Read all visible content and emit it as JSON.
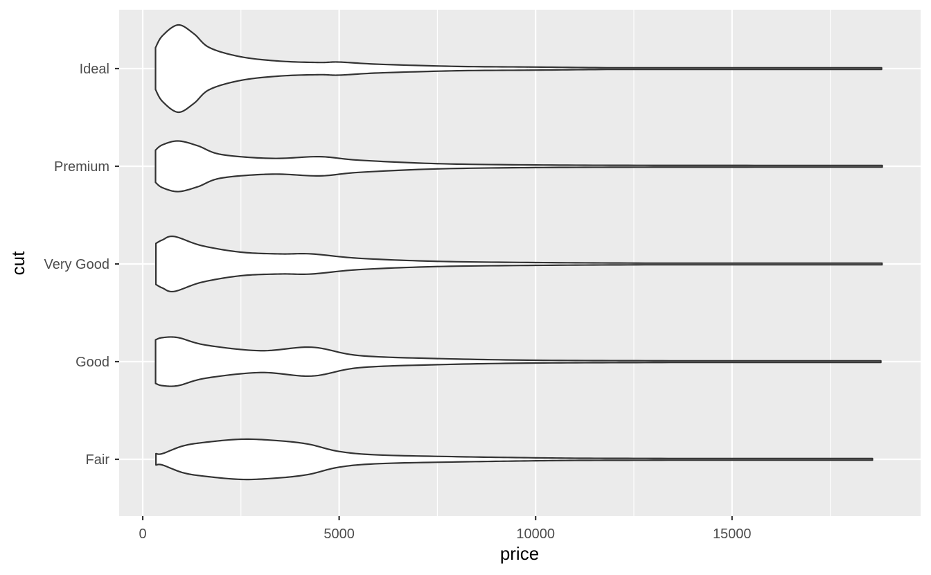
{
  "chart_data": {
    "type": "violin",
    "orientation": "horizontal",
    "title": "",
    "xlabel": "price",
    "ylabel": "cut",
    "xlim": [
      -600,
      19800
    ],
    "x_ticks": [
      0,
      5000,
      10000,
      15000
    ],
    "x_tick_labels": [
      "0",
      "5000",
      "10000",
      "15000"
    ],
    "x_minor_ticks": [
      2500,
      7500,
      12500,
      17500
    ],
    "categories": [
      "Ideal",
      "Premium",
      "Very Good",
      "Good",
      "Fair"
    ],
    "grid": true,
    "legend": "none",
    "colors": {
      "panel_background": "#ebebeb",
      "grid_line": "#ffffff",
      "violin_fill": "#ffffff",
      "violin_outline": "#333333",
      "tick_label": "#4d4d4d",
      "axis_title": "#000000"
    },
    "series": [
      {
        "category": "Ideal",
        "min": 326,
        "max": 18806,
        "density_profile": [
          [
            326,
            0.48
          ],
          [
            500,
            0.75
          ],
          [
            900,
            1.0
          ],
          [
            1300,
            0.8
          ],
          [
            1700,
            0.48
          ],
          [
            2500,
            0.27
          ],
          [
            3500,
            0.17
          ],
          [
            4500,
            0.14
          ],
          [
            5000,
            0.15
          ],
          [
            6000,
            0.1
          ],
          [
            8000,
            0.05
          ],
          [
            10000,
            0.035
          ],
          [
            12000,
            0.018
          ],
          [
            15000,
            0.008
          ],
          [
            18806,
            0.0
          ]
        ]
      },
      {
        "category": "Premium",
        "min": 326,
        "max": 18823,
        "density_profile": [
          [
            326,
            0.37
          ],
          [
            500,
            0.49
          ],
          [
            900,
            0.58
          ],
          [
            1400,
            0.47
          ],
          [
            2000,
            0.27
          ],
          [
            3300,
            0.18
          ],
          [
            4500,
            0.22
          ],
          [
            5500,
            0.14
          ],
          [
            7500,
            0.06
          ],
          [
            10000,
            0.03
          ],
          [
            13000,
            0.02
          ],
          [
            16000,
            0.018
          ],
          [
            18823,
            0.0
          ]
        ]
      },
      {
        "category": "Very Good",
        "min": 336,
        "max": 18818,
        "density_profile": [
          [
            336,
            0.47
          ],
          [
            500,
            0.55
          ],
          [
            800,
            0.63
          ],
          [
            1500,
            0.42
          ],
          [
            2500,
            0.27
          ],
          [
            3500,
            0.23
          ],
          [
            4300,
            0.23
          ],
          [
            5500,
            0.13
          ],
          [
            7500,
            0.06
          ],
          [
            10000,
            0.032
          ],
          [
            13000,
            0.018
          ],
          [
            16000,
            0.008
          ],
          [
            18818,
            0.0
          ]
        ]
      },
      {
        "category": "Good",
        "min": 327,
        "max": 18788,
        "density_profile": [
          [
            327,
            0.5
          ],
          [
            500,
            0.55
          ],
          [
            900,
            0.55
          ],
          [
            1600,
            0.38
          ],
          [
            3000,
            0.25
          ],
          [
            4300,
            0.33
          ],
          [
            5500,
            0.14
          ],
          [
            7500,
            0.07
          ],
          [
            10000,
            0.032
          ],
          [
            13000,
            0.02
          ],
          [
            16000,
            0.012
          ],
          [
            18788,
            0.0
          ]
        ]
      },
      {
        "category": "Fair",
        "min": 337,
        "max": 18574,
        "density_profile": [
          [
            337,
            0.13
          ],
          [
            500,
            0.13
          ],
          [
            1000,
            0.3
          ],
          [
            1500,
            0.38
          ],
          [
            2500,
            0.46
          ],
          [
            3400,
            0.43
          ],
          [
            4200,
            0.35
          ],
          [
            5000,
            0.18
          ],
          [
            6000,
            0.1
          ],
          [
            8000,
            0.06
          ],
          [
            9500,
            0.04
          ],
          [
            11000,
            0.025
          ],
          [
            13000,
            0.02
          ],
          [
            16000,
            0.012
          ],
          [
            18574,
            0.0
          ]
        ]
      }
    ]
  }
}
